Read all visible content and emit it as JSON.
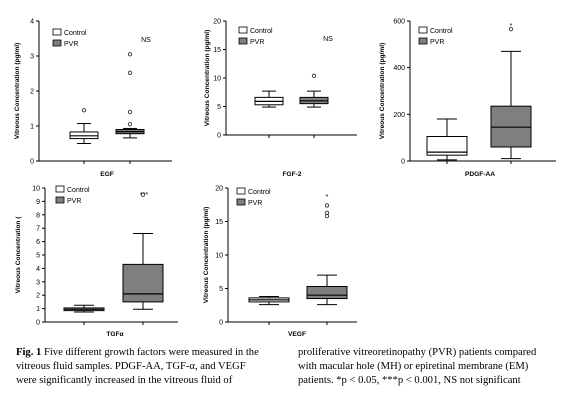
{
  "colors": {
    "control": "#ffffff",
    "pvr": "#7f7f7f",
    "outline": "#000000"
  },
  "chart_data": [
    {
      "type": "box",
      "xlabel": "EGF",
      "ylabel": "Vitreous Concentration  (pg/ml)",
      "ylim": [
        0,
        4
      ],
      "yticks": [
        "0",
        "1",
        "2",
        "3",
        "4"
      ],
      "legend": [
        "Control",
        "PVR"
      ],
      "annotation": "NS",
      "series": [
        {
          "name": "Control",
          "whisker_low": 0.5,
          "q1": 0.64,
          "median": 0.72,
          "q3": 0.83,
          "whisker_high": 1.07,
          "outliers": [
            1.45
          ]
        },
        {
          "name": "PVR",
          "whisker_low": 0.66,
          "q1": 0.78,
          "median": 0.84,
          "q3": 0.9,
          "whisker_high": 0.93,
          "outliers": [
            1.05,
            1.4,
            2.52,
            3.05
          ]
        }
      ]
    },
    {
      "type": "box",
      "xlabel": "FGF-2",
      "ylabel": "Vitreous Concentration  (pg/ml)",
      "ylim": [
        0,
        20
      ],
      "yticks": [
        "0",
        "5",
        "10",
        "15",
        "20"
      ],
      "legend": [
        "Control",
        "PVR"
      ],
      "annotation": "NS",
      "series": [
        {
          "name": "Control",
          "whisker_low": 4.9,
          "q1": 5.3,
          "median": 5.9,
          "q3": 6.6,
          "whisker_high": 7.7,
          "outliers": []
        },
        {
          "name": "PVR",
          "whisker_low": 4.9,
          "q1": 5.5,
          "median": 6.0,
          "q3": 6.6,
          "whisker_high": 7.7,
          "outliers": [
            10.4
          ]
        }
      ]
    },
    {
      "type": "box",
      "xlabel": "PDGF-AA",
      "ylabel": "Vitreous Concentration  (pg/ml)",
      "ylim": [
        0,
        600
      ],
      "yticks": [
        "0",
        "200",
        "400",
        "600"
      ],
      "legend": [
        "Control",
        "PVR"
      ],
      "annotation": "*",
      "series": [
        {
          "name": "Control",
          "whisker_low": 5,
          "q1": 25,
          "median": 38,
          "q3": 105,
          "whisker_high": 180,
          "outliers": []
        },
        {
          "name": "PVR",
          "whisker_low": 10,
          "q1": 60,
          "median": 145,
          "q3": 235,
          "whisker_high": 470,
          "outliers": [
            565
          ]
        }
      ]
    },
    {
      "type": "box",
      "xlabel": "TGFα",
      "ylabel": "Vitreous Concentration  (",
      "ylim": [
        0,
        10
      ],
      "yticks": [
        "0",
        "1",
        "2",
        "3",
        "4",
        "5",
        "6",
        "7",
        "8",
        "9",
        "10"
      ],
      "legend": [
        "Control",
        "PVR"
      ],
      "annotation": "***",
      "series": [
        {
          "name": "Control",
          "whisker_low": 0.75,
          "q1": 0.85,
          "median": 0.95,
          "q3": 1.05,
          "whisker_high": 1.25,
          "outliers": []
        },
        {
          "name": "PVR",
          "whisker_low": 0.95,
          "q1": 1.5,
          "median": 2.1,
          "q3": 4.3,
          "whisker_high": 6.6,
          "outliers": [
            9.5
          ]
        }
      ]
    },
    {
      "type": "box",
      "xlabel": "VEGF",
      "ylabel": "Vitreous Concentration  (pg/ml)",
      "ylim": [
        0,
        20
      ],
      "yticks": [
        "0",
        "5",
        "10",
        "15",
        "20"
      ],
      "legend": [
        "Control",
        "PVR"
      ],
      "annotation": "*",
      "series": [
        {
          "name": "Control",
          "whisker_low": 2.6,
          "q1": 3.0,
          "median": 3.3,
          "q3": 3.6,
          "whisker_high": 3.8,
          "outliers": []
        },
        {
          "name": "PVR",
          "whisker_low": 2.6,
          "q1": 3.5,
          "median": 4.0,
          "q3": 5.3,
          "whisker_high": 7.0,
          "outliers": [
            15.8,
            16.3,
            17.4
          ]
        }
      ]
    }
  ],
  "caption": {
    "label": "Fig. 1",
    "left_lines": [
      " Five different growth factors were measured in the",
      "vitreous fluid samples. PDGF-AA, TGF-α, and VEGF",
      "were significantly increased in the vitreous fluid of"
    ],
    "right_lines": [
      "proliferative vitreoretinopathy (PVR) patients compared",
      "with macular hole (MH) or epiretinal membrane (EM)",
      "patients. *p < 0.05, ***p < 0.001, NS not significant"
    ]
  }
}
